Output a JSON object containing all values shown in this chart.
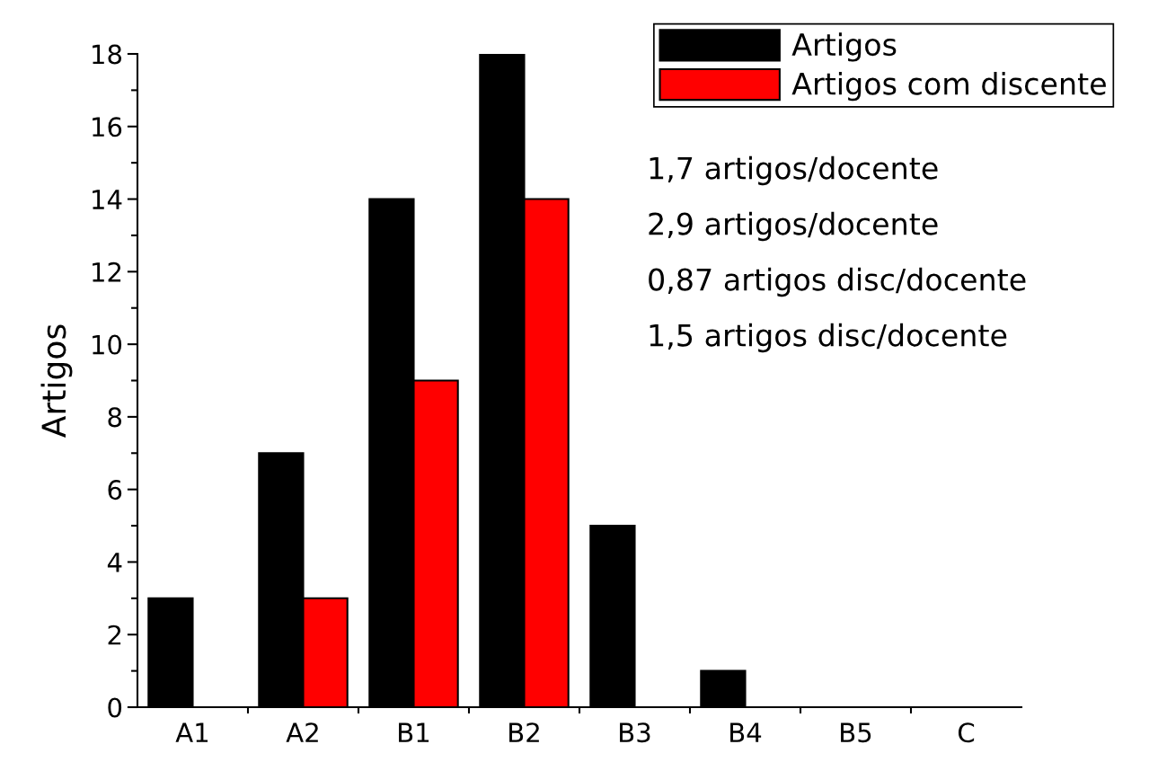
{
  "chart_data": {
    "type": "bar",
    "ylabel": "Artigos",
    "categories": [
      "A1",
      "A2",
      "B1",
      "B2",
      "B3",
      "B4",
      "B5",
      "C"
    ],
    "series": [
      {
        "name": "Artigos",
        "color": "#000000",
        "values": [
          3,
          7,
          14,
          18,
          5,
          1,
          0,
          0
        ]
      },
      {
        "name": "Artigos com discente",
        "color": "#ff0000",
        "values": [
          0,
          3,
          9,
          14,
          0,
          0,
          0,
          0
        ]
      }
    ],
    "ylim": [
      0,
      18
    ],
    "yticks": [
      0,
      2,
      4,
      6,
      8,
      10,
      12,
      14,
      16,
      18
    ],
    "legend": "top right",
    "grid": false,
    "annotations": [
      "1,7 artigos/docente",
      "2,9 artigos/docente",
      "0,87 artigos disc/docente",
      "1,5 artigos disc/docente"
    ]
  }
}
